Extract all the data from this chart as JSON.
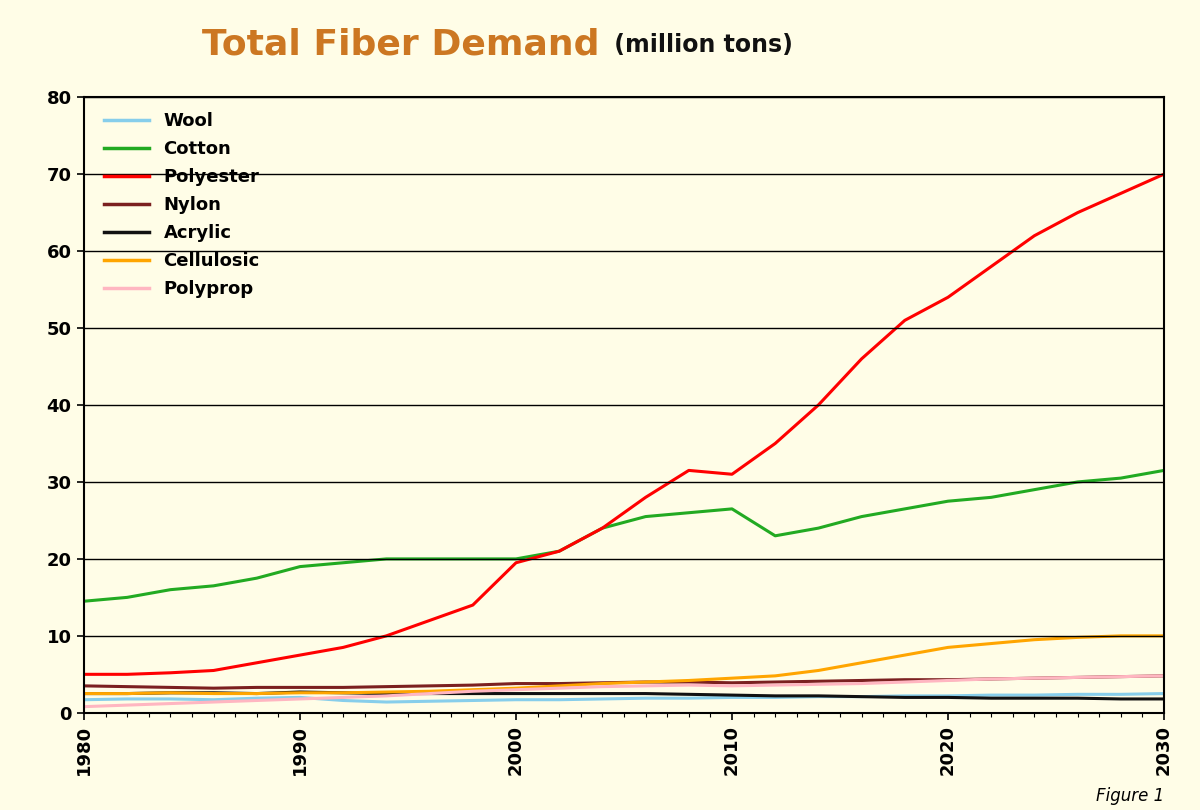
{
  "title_main": "Total Fiber Demand",
  "title_sub": "(million tons)",
  "title_main_color": "#CC7722",
  "title_sub_color": "#111111",
  "background_color": "#FFFDE7",
  "xlim": [
    1980,
    2030
  ],
  "ylim": [
    0,
    80
  ],
  "yticks": [
    0,
    10,
    20,
    30,
    40,
    50,
    60,
    70,
    80
  ],
  "xticks": [
    1980,
    1990,
    2000,
    2010,
    2020,
    2030
  ],
  "figure1_label": "Figure 1",
  "series": [
    {
      "name": "Wool",
      "color": "#87CEEB",
      "data_x": [
        1980,
        1982,
        1984,
        1986,
        1988,
        1990,
        1992,
        1994,
        1996,
        1998,
        2000,
        2002,
        2004,
        2006,
        2008,
        2010,
        2012,
        2014,
        2016,
        2018,
        2020,
        2022,
        2024,
        2026,
        2028,
        2030
      ],
      "data_y": [
        1.7,
        1.8,
        1.8,
        1.7,
        1.9,
        2.0,
        1.6,
        1.4,
        1.5,
        1.6,
        1.7,
        1.7,
        1.8,
        1.9,
        1.9,
        2.0,
        2.0,
        2.1,
        2.1,
        2.2,
        2.2,
        2.3,
        2.3,
        2.4,
        2.4,
        2.5
      ]
    },
    {
      "name": "Cotton",
      "color": "#22AA22",
      "data_x": [
        1980,
        1982,
        1984,
        1986,
        1988,
        1990,
        1992,
        1994,
        1996,
        1998,
        2000,
        2002,
        2004,
        2006,
        2008,
        2010,
        2012,
        2014,
        2016,
        2018,
        2020,
        2022,
        2024,
        2026,
        2028,
        2030
      ],
      "data_y": [
        14.5,
        15.0,
        16.0,
        16.5,
        17.5,
        19.0,
        19.5,
        20.0,
        20.0,
        20.0,
        20.0,
        21.0,
        24.0,
        25.5,
        26.0,
        26.5,
        23.0,
        24.0,
        25.5,
        26.5,
        27.5,
        28.0,
        29.0,
        30.0,
        30.5,
        31.5
      ]
    },
    {
      "name": "Polyester",
      "color": "#FF0000",
      "data_x": [
        1980,
        1982,
        1984,
        1986,
        1988,
        1990,
        1992,
        1994,
        1996,
        1998,
        2000,
        2002,
        2004,
        2006,
        2008,
        2010,
        2012,
        2014,
        2016,
        2018,
        2020,
        2022,
        2024,
        2026,
        2028,
        2030
      ],
      "data_y": [
        5.0,
        5.0,
        5.2,
        5.5,
        6.5,
        7.5,
        8.5,
        10.0,
        12.0,
        14.0,
        19.5,
        21.0,
        24.0,
        28.0,
        31.5,
        31.0,
        35.0,
        40.0,
        46.0,
        51.0,
        54.0,
        58.0,
        62.0,
        65.0,
        67.5,
        70.0
      ]
    },
    {
      "name": "Nylon",
      "color": "#7B2020",
      "data_x": [
        1980,
        1982,
        1984,
        1986,
        1988,
        1990,
        1992,
        1994,
        1996,
        1998,
        2000,
        2002,
        2004,
        2006,
        2008,
        2010,
        2012,
        2014,
        2016,
        2018,
        2020,
        2022,
        2024,
        2026,
        2028,
        2030
      ],
      "data_y": [
        3.5,
        3.4,
        3.3,
        3.2,
        3.3,
        3.3,
        3.3,
        3.4,
        3.5,
        3.6,
        3.8,
        3.8,
        3.9,
        4.0,
        4.0,
        3.9,
        4.0,
        4.1,
        4.2,
        4.3,
        4.3,
        4.4,
        4.5,
        4.6,
        4.7,
        4.8
      ]
    },
    {
      "name": "Acrylic",
      "color": "#111111",
      "data_x": [
        1980,
        1982,
        1984,
        1986,
        1988,
        1990,
        1992,
        1994,
        1996,
        1998,
        2000,
        2002,
        2004,
        2006,
        2008,
        2010,
        2012,
        2014,
        2016,
        2018,
        2020,
        2022,
        2024,
        2026,
        2028,
        2030
      ],
      "data_y": [
        2.5,
        2.5,
        2.6,
        2.6,
        2.5,
        2.7,
        2.6,
        2.5,
        2.5,
        2.5,
        2.5,
        2.5,
        2.5,
        2.5,
        2.4,
        2.3,
        2.2,
        2.2,
        2.1,
        2.0,
        2.0,
        1.9,
        1.9,
        1.9,
        1.8,
        1.8
      ]
    },
    {
      "name": "Cellulosic",
      "color": "#FFA500",
      "data_x": [
        1980,
        1982,
        1984,
        1986,
        1988,
        1990,
        1992,
        1994,
        1996,
        1998,
        2000,
        2002,
        2004,
        2006,
        2008,
        2010,
        2012,
        2014,
        2016,
        2018,
        2020,
        2022,
        2024,
        2026,
        2028,
        2030
      ],
      "data_y": [
        2.5,
        2.5,
        2.6,
        2.5,
        2.5,
        2.6,
        2.6,
        2.7,
        2.8,
        3.0,
        3.2,
        3.5,
        3.8,
        4.0,
        4.2,
        4.5,
        4.8,
        5.5,
        6.5,
        7.5,
        8.5,
        9.0,
        9.5,
        9.8,
        10.0,
        10.0
      ]
    },
    {
      "name": "Polyprop",
      "color": "#FFB6C1",
      "data_x": [
        1980,
        1982,
        1984,
        1986,
        1988,
        1990,
        1992,
        1994,
        1996,
        1998,
        2000,
        2002,
        2004,
        2006,
        2008,
        2010,
        2012,
        2014,
        2016,
        2018,
        2020,
        2022,
        2024,
        2026,
        2028,
        2030
      ],
      "data_y": [
        0.8,
        1.0,
        1.2,
        1.4,
        1.6,
        1.8,
        2.0,
        2.2,
        2.5,
        2.8,
        3.0,
        3.2,
        3.4,
        3.5,
        3.6,
        3.5,
        3.6,
        3.7,
        3.8,
        4.0,
        4.2,
        4.4,
        4.5,
        4.6,
        4.7,
        4.8
      ]
    }
  ]
}
